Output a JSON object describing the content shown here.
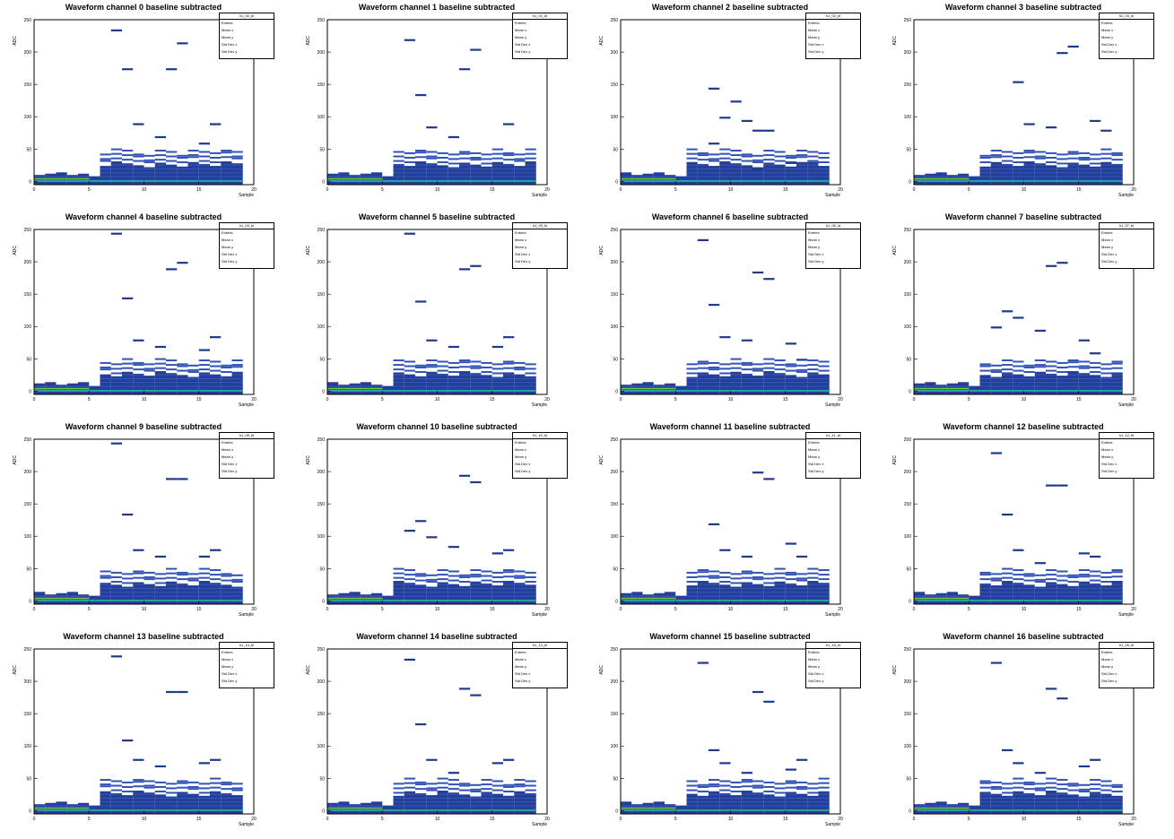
{
  "chart_data": [
    {
      "type": "heatmap",
      "title": "Waveform channel 0 baseline subtracted",
      "xlabel": "Sample",
      "ylabel": "ADC",
      "xlim": [
        0,
        20
      ],
      "ylim": [
        -5,
        250
      ],
      "x_ticks": [
        "0",
        "5",
        "10",
        "15",
        "20"
      ],
      "y_ticks": [
        "0",
        "50",
        "100",
        "150",
        "200",
        "250"
      ],
      "stats_name": "h1_00_bl",
      "stats_labels": [
        "Entries",
        "Mean x",
        "Mean y",
        "Std Dev x",
        "Std Dev y"
      ],
      "outliers": [
        [
          7,
          235
        ],
        [
          8,
          175
        ],
        [
          9,
          90
        ],
        [
          11,
          70
        ],
        [
          12,
          175
        ],
        [
          13,
          215
        ],
        [
          15,
          60
        ],
        [
          16,
          90
        ]
      ]
    },
    {
      "type": "heatmap",
      "title": "Waveform channel 1 baseline subtracted",
      "xlabel": "Sample",
      "ylabel": "ADC",
      "xlim": [
        0,
        20
      ],
      "ylim": [
        -5,
        250
      ],
      "x_ticks": [
        "0",
        "5",
        "10",
        "15",
        "20"
      ],
      "y_ticks": [
        "0",
        "50",
        "100",
        "150",
        "200",
        "250"
      ],
      "stats_name": "h1_01_bl",
      "stats_labels": [
        "Entries",
        "Mean x",
        "Mean y",
        "Std Dev x",
        "Std Dev y"
      ],
      "outliers": [
        [
          7,
          220
        ],
        [
          8,
          135
        ],
        [
          9,
          85
        ],
        [
          11,
          70
        ],
        [
          12,
          175
        ],
        [
          13,
          205
        ],
        [
          16,
          90
        ]
      ]
    },
    {
      "type": "heatmap",
      "title": "Waveform channel 2 baseline subtracted",
      "xlabel": "Sample",
      "ylabel": "ADC",
      "xlim": [
        0,
        20
      ],
      "ylim": [
        -5,
        250
      ],
      "x_ticks": [
        "0",
        "5",
        "10",
        "15",
        "20"
      ],
      "y_ticks": [
        "0",
        "50",
        "100",
        "150",
        "200",
        "250"
      ],
      "stats_name": "h1_02_bl",
      "stats_labels": [
        "Entries",
        "Mean x",
        "Mean y",
        "Std Dev x",
        "Std Dev y"
      ],
      "outliers": [
        [
          8,
          145
        ],
        [
          9,
          100
        ],
        [
          10,
          125
        ],
        [
          11,
          95
        ],
        [
          12,
          80
        ],
        [
          13,
          80
        ],
        [
          8,
          60
        ],
        [
          15,
          30
        ],
        [
          17,
          30
        ],
        [
          12,
          20
        ]
      ]
    },
    {
      "type": "heatmap",
      "title": "Waveform channel 3 baseline subtracted",
      "xlabel": "Sample",
      "ylabel": "ADC",
      "xlim": [
        0,
        20
      ],
      "ylim": [
        -5,
        250
      ],
      "x_ticks": [
        "0",
        "5",
        "10",
        "15",
        "20"
      ],
      "y_ticks": [
        "0",
        "50",
        "100",
        "150",
        "200",
        "250"
      ],
      "stats_name": "h1_03_bl",
      "stats_labels": [
        "Entries",
        "Mean x",
        "Mean y",
        "Std Dev x",
        "Std Dev y"
      ],
      "outliers": [
        [
          9,
          155
        ],
        [
          10,
          90
        ],
        [
          12,
          85
        ],
        [
          13,
          200
        ],
        [
          14,
          210
        ],
        [
          16,
          95
        ],
        [
          17,
          80
        ]
      ]
    },
    {
      "type": "heatmap",
      "title": "Waveform channel 4 baseline subtracted",
      "xlabel": "Sample",
      "ylabel": "ADC",
      "xlim": [
        0,
        20
      ],
      "ylim": [
        -5,
        250
      ],
      "x_ticks": [
        "0",
        "5",
        "10",
        "15",
        "20"
      ],
      "y_ticks": [
        "0",
        "50",
        "100",
        "150",
        "200",
        "250"
      ],
      "stats_name": "h1_04_bl",
      "stats_labels": [
        "Entries",
        "Mean x",
        "Mean y",
        "Std Dev x",
        "Std Dev y"
      ],
      "outliers": [
        [
          7,
          245
        ],
        [
          8,
          145
        ],
        [
          9,
          80
        ],
        [
          11,
          70
        ],
        [
          12,
          190
        ],
        [
          13,
          200
        ],
        [
          15,
          65
        ],
        [
          16,
          85
        ]
      ]
    },
    {
      "type": "heatmap",
      "title": "Waveform channel 5 baseline subtracted",
      "xlabel": "Sample",
      "ylabel": "ADC",
      "xlim": [
        0,
        20
      ],
      "ylim": [
        -5,
        250
      ],
      "x_ticks": [
        "0",
        "5",
        "10",
        "15",
        "20"
      ],
      "y_ticks": [
        "0",
        "50",
        "100",
        "150",
        "200",
        "250"
      ],
      "stats_name": "h1_05_bl",
      "stats_labels": [
        "Entries",
        "Mean x",
        "Mean y",
        "Std Dev x",
        "Std Dev y"
      ],
      "outliers": [
        [
          7,
          245
        ],
        [
          8,
          140
        ],
        [
          9,
          80
        ],
        [
          11,
          70
        ],
        [
          12,
          190
        ],
        [
          13,
          195
        ],
        [
          15,
          70
        ],
        [
          16,
          85
        ]
      ]
    },
    {
      "type": "heatmap",
      "title": "Waveform channel 6 baseline subtracted",
      "xlabel": "Sample",
      "ylabel": "ADC",
      "xlim": [
        0,
        20
      ],
      "ylim": [
        -5,
        250
      ],
      "x_ticks": [
        "0",
        "5",
        "10",
        "15",
        "20"
      ],
      "y_ticks": [
        "0",
        "50",
        "100",
        "150",
        "200",
        "250"
      ],
      "stats_name": "h1_06_bl",
      "stats_labels": [
        "Entries",
        "Mean x",
        "Mean y",
        "Std Dev x",
        "Std Dev y"
      ],
      "outliers": [
        [
          7,
          235
        ],
        [
          8,
          135
        ],
        [
          9,
          85
        ],
        [
          11,
          80
        ],
        [
          12,
          185
        ],
        [
          13,
          175
        ],
        [
          15,
          75
        ],
        [
          16,
          50
        ]
      ]
    },
    {
      "type": "heatmap",
      "title": "Waveform channel 7 baseline subtracted",
      "xlabel": "Sample",
      "ylabel": "ADC",
      "xlim": [
        0,
        20
      ],
      "ylim": [
        -5,
        250
      ],
      "x_ticks": [
        "0",
        "5",
        "10",
        "15",
        "20"
      ],
      "y_ticks": [
        "0",
        "50",
        "100",
        "150",
        "200",
        "250"
      ],
      "stats_name": "h1_07_bl",
      "stats_labels": [
        "Entries",
        "Mean x",
        "Mean y",
        "Std Dev x",
        "Std Dev y"
      ],
      "outliers": [
        [
          7,
          100
        ],
        [
          8,
          125
        ],
        [
          9,
          115
        ],
        [
          11,
          95
        ],
        [
          12,
          195
        ],
        [
          13,
          200
        ],
        [
          15,
          80
        ],
        [
          16,
          60
        ]
      ]
    },
    {
      "type": "heatmap",
      "title": "Waveform channel 9 baseline subtracted",
      "xlabel": "Sample",
      "ylabel": "ADC",
      "xlim": [
        0,
        20
      ],
      "ylim": [
        -5,
        250
      ],
      "x_ticks": [
        "0",
        "5",
        "10",
        "15",
        "20"
      ],
      "y_ticks": [
        "0",
        "50",
        "100",
        "150",
        "200",
        "250"
      ],
      "stats_name": "h1_09_bl",
      "stats_labels": [
        "Entries",
        "Mean x",
        "Mean y",
        "Std Dev x",
        "Std Dev y"
      ],
      "outliers": [
        [
          7,
          245
        ],
        [
          8,
          135
        ],
        [
          9,
          80
        ],
        [
          11,
          70
        ],
        [
          12,
          190
        ],
        [
          13,
          190
        ],
        [
          15,
          70
        ],
        [
          16,
          80
        ]
      ]
    },
    {
      "type": "heatmap",
      "title": "Waveform channel 10 baseline subtracted",
      "xlabel": "Sample",
      "ylabel": "ADC",
      "xlim": [
        0,
        20
      ],
      "ylim": [
        -5,
        250
      ],
      "x_ticks": [
        "0",
        "5",
        "10",
        "15",
        "20"
      ],
      "y_ticks": [
        "0",
        "50",
        "100",
        "150",
        "200",
        "250"
      ],
      "stats_name": "h1_10_bl",
      "stats_labels": [
        "Entries",
        "Mean x",
        "Mean y",
        "Std Dev x",
        "Std Dev y"
      ],
      "outliers": [
        [
          7,
          110
        ],
        [
          8,
          125
        ],
        [
          9,
          100
        ],
        [
          11,
          85
        ],
        [
          12,
          195
        ],
        [
          13,
          185
        ],
        [
          15,
          75
        ],
        [
          16,
          80
        ]
      ]
    },
    {
      "type": "heatmap",
      "title": "Waveform channel 11 baseline subtracted",
      "xlabel": "Sample",
      "ylabel": "ADC",
      "xlim": [
        0,
        20
      ],
      "ylim": [
        -5,
        250
      ],
      "x_ticks": [
        "0",
        "5",
        "10",
        "15",
        "20"
      ],
      "y_ticks": [
        "0",
        "50",
        "100",
        "150",
        "200",
        "250"
      ],
      "stats_name": "h1_11_bl",
      "stats_labels": [
        "Entries",
        "Mean x",
        "Mean y",
        "Std Dev x",
        "Std Dev y"
      ],
      "outliers": [
        [
          8,
          120
        ],
        [
          9,
          80
        ],
        [
          11,
          70
        ],
        [
          12,
          200
        ],
        [
          13,
          190
        ],
        [
          15,
          90
        ],
        [
          16,
          70
        ]
      ]
    },
    {
      "type": "heatmap",
      "title": "Waveform channel 12 baseline subtracted",
      "xlabel": "Sample",
      "ylabel": "ADC",
      "xlim": [
        0,
        20
      ],
      "ylim": [
        -5,
        250
      ],
      "x_ticks": [
        "0",
        "5",
        "10",
        "15",
        "20"
      ],
      "y_ticks": [
        "0",
        "50",
        "100",
        "150",
        "200",
        "250"
      ],
      "stats_name": "h1_12_bl",
      "stats_labels": [
        "Entries",
        "Mean x",
        "Mean y",
        "Std Dev x",
        "Std Dev y"
      ],
      "outliers": [
        [
          7,
          230
        ],
        [
          8,
          135
        ],
        [
          9,
          80
        ],
        [
          11,
          60
        ],
        [
          12,
          180
        ],
        [
          13,
          180
        ],
        [
          15,
          75
        ],
        [
          16,
          70
        ]
      ]
    },
    {
      "type": "heatmap",
      "title": "Waveform channel 13 baseline subtracted",
      "xlabel": "Sample",
      "ylabel": "ADC",
      "xlim": [
        0,
        20
      ],
      "ylim": [
        -5,
        250
      ],
      "x_ticks": [
        "0",
        "5",
        "10",
        "15",
        "20"
      ],
      "y_ticks": [
        "0",
        "50",
        "100",
        "150",
        "200",
        "250"
      ],
      "stats_name": "h1_13_bl",
      "stats_labels": [
        "Entries",
        "Mean x",
        "Mean y",
        "Std Dev x",
        "Std Dev y"
      ],
      "outliers": [
        [
          7,
          240
        ],
        [
          8,
          110
        ],
        [
          9,
          80
        ],
        [
          11,
          70
        ],
        [
          12,
          185
        ],
        [
          13,
          185
        ],
        [
          15,
          75
        ],
        [
          16,
          80
        ]
      ]
    },
    {
      "type": "heatmap",
      "title": "Waveform channel 14 baseline subtracted",
      "xlabel": "Sample",
      "ylabel": "ADC",
      "xlim": [
        0,
        20
      ],
      "ylim": [
        -5,
        250
      ],
      "x_ticks": [
        "0",
        "5",
        "10",
        "15",
        "20"
      ],
      "y_ticks": [
        "0",
        "50",
        "100",
        "150",
        "200",
        "250"
      ],
      "stats_name": "h1_14_bl",
      "stats_labels": [
        "Entries",
        "Mean x",
        "Mean y",
        "Std Dev x",
        "Std Dev y"
      ],
      "outliers": [
        [
          7,
          235
        ],
        [
          8,
          135
        ],
        [
          9,
          80
        ],
        [
          11,
          60
        ],
        [
          12,
          190
        ],
        [
          13,
          180
        ],
        [
          15,
          75
        ],
        [
          16,
          80
        ]
      ]
    },
    {
      "type": "heatmap",
      "title": "Waveform channel 15 baseline subtracted",
      "xlabel": "Sample",
      "ylabel": "ADC",
      "xlim": [
        0,
        20
      ],
      "ylim": [
        -5,
        250
      ],
      "x_ticks": [
        "0",
        "5",
        "10",
        "15",
        "20"
      ],
      "y_ticks": [
        "0",
        "50",
        "100",
        "150",
        "200",
        "250"
      ],
      "stats_name": "h1_15_bl",
      "stats_labels": [
        "Entries",
        "Mean x",
        "Mean y",
        "Std Dev x",
        "Std Dev y"
      ],
      "outliers": [
        [
          7,
          230
        ],
        [
          8,
          95
        ],
        [
          9,
          75
        ],
        [
          11,
          60
        ],
        [
          12,
          185
        ],
        [
          13,
          170
        ],
        [
          15,
          65
        ],
        [
          16,
          80
        ]
      ]
    },
    {
      "type": "heatmap",
      "title": "Waveform channel 16 baseline subtracted",
      "xlabel": "Sample",
      "ylabel": "ADC",
      "xlim": [
        0,
        20
      ],
      "ylim": [
        -5,
        250
      ],
      "x_ticks": [
        "0",
        "5",
        "10",
        "15",
        "20"
      ],
      "y_ticks": [
        "0",
        "50",
        "100",
        "150",
        "200",
        "250"
      ],
      "stats_name": "h1_16_bl",
      "stats_labels": [
        "Entries",
        "Mean x",
        "Mean y",
        "Std Dev x",
        "Std Dev y"
      ],
      "outliers": [
        [
          7,
          230
        ],
        [
          8,
          95
        ],
        [
          9,
          75
        ],
        [
          11,
          60
        ],
        [
          12,
          190
        ],
        [
          13,
          175
        ],
        [
          15,
          70
        ],
        [
          16,
          80
        ]
      ]
    }
  ],
  "palette": {
    "dense": "#243f9a",
    "medium": "#3153b8",
    "teal": "#2aa1a0",
    "green": "#6ec63a",
    "outlier": "#1d3a8c"
  }
}
